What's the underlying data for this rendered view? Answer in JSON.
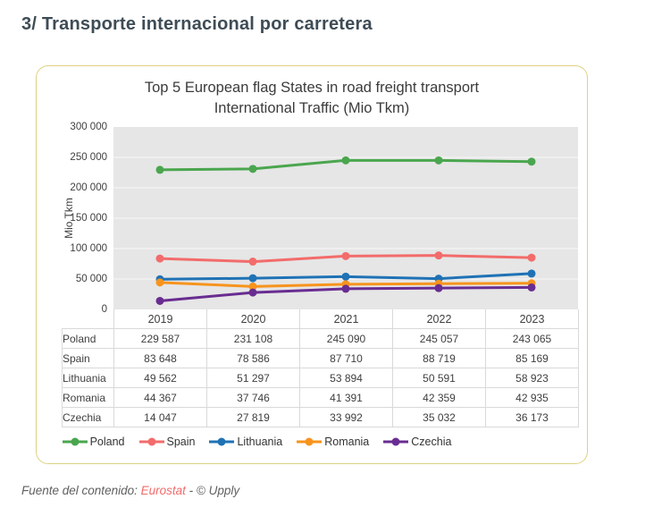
{
  "page": {
    "heading": "3/ Transporte internacional por carretera",
    "footer": {
      "prefix": "Fuente del contenido:",
      "link_text": "Eurostat",
      "suffix": "- © Upply",
      "link_color": "#f26b6b"
    }
  },
  "card": {
    "title_line1": "Top 5 European flag States in road freight transport",
    "title_line2": "International Traffic (Mio Tkm)",
    "border_color": "#ded283"
  },
  "chart_data": {
    "type": "line",
    "title": "Top 5 European flag States in road freight transport International Traffic (Mio Tkm)",
    "xlabel": "",
    "ylabel": "Mio Tkm",
    "categories": [
      "2019",
      "2020",
      "2021",
      "2022",
      "2023"
    ],
    "ylim": [
      0,
      300000
    ],
    "grid": true,
    "gridline_color": "#f2f2f2",
    "plot_background": "#e6e6e6",
    "legend_position": "bottom",
    "yticks": [
      {
        "value": 0,
        "label": "0"
      },
      {
        "value": 50000,
        "label": "50 000"
      },
      {
        "value": 100000,
        "label": "100 000"
      },
      {
        "value": 150000,
        "label": "150 000"
      },
      {
        "value": 200000,
        "label": "200 000"
      },
      {
        "value": 250000,
        "label": "250 000"
      },
      {
        "value": 300000,
        "label": "300 000"
      }
    ],
    "series": [
      {
        "name": "Poland",
        "color": "#4aa64e",
        "values": [
          229587,
          231108,
          245090,
          245057,
          243065
        ],
        "display_values": [
          "229 587",
          "231 108",
          "245 090",
          "245 057",
          "243 065"
        ]
      },
      {
        "name": "Spain",
        "color": "#f26c6b",
        "values": [
          83648,
          78586,
          87710,
          88719,
          85169
        ],
        "display_values": [
          "83 648",
          "78 586",
          "87 710",
          "88 719",
          "85 169"
        ]
      },
      {
        "name": "Lithuania",
        "color": "#1f72b5",
        "values": [
          49562,
          51297,
          53894,
          50591,
          58923
        ],
        "display_values": [
          "49 562",
          "51 297",
          "53 894",
          "50 591",
          "58 923"
        ]
      },
      {
        "name": "Romania",
        "color": "#f7941d",
        "values": [
          44367,
          37746,
          41391,
          42359,
          42935
        ],
        "display_values": [
          "44 367",
          "37 746",
          "41 391",
          "42 359",
          "42 935"
        ]
      },
      {
        "name": "Czechia",
        "color": "#692d91",
        "values": [
          14047,
          27819,
          33992,
          35032,
          36173
        ],
        "display_values": [
          "14 047",
          "27 819",
          "33 992",
          "35 032",
          "36 173"
        ]
      }
    ]
  }
}
